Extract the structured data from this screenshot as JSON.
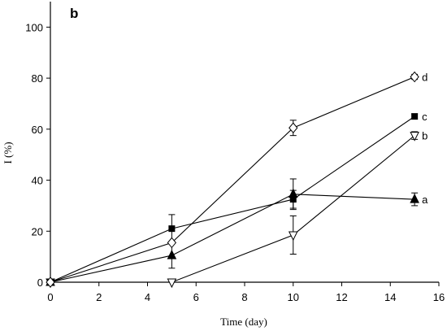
{
  "chart_data": {
    "type": "line",
    "panel_label": "b",
    "xlabel": "Time (day)",
    "ylabel": "I (%)",
    "xlim": [
      0,
      16
    ],
    "ylim": [
      0,
      110
    ],
    "xticks": [
      0,
      2,
      4,
      6,
      8,
      10,
      12,
      14,
      16
    ],
    "yticks": [
      0,
      20,
      40,
      60,
      80,
      100
    ],
    "grid": false,
    "series": [
      {
        "name": "a",
        "marker": "filled-triangle-up",
        "x": [
          0,
          5,
          10,
          15
        ],
        "y": [
          0,
          10.5,
          34.5,
          32.5
        ],
        "error": [
          0,
          5,
          6,
          2.5
        ]
      },
      {
        "name": "b",
        "marker": "open-triangle-down",
        "x": [
          0,
          5,
          10,
          15
        ],
        "y": [
          0,
          0,
          18.5,
          57.5
        ],
        "error": [
          0,
          0,
          7.5,
          1.5
        ]
      },
      {
        "name": "c",
        "marker": "filled-square",
        "x": [
          0,
          5,
          10,
          15
        ],
        "y": [
          0,
          21,
          32.5,
          65
        ],
        "error": [
          0,
          5.5,
          3.5,
          1
        ]
      },
      {
        "name": "d",
        "marker": "open-diamond",
        "x": [
          0,
          5,
          10,
          15
        ],
        "y": [
          0,
          15.5,
          60.5,
          80.5
        ],
        "error": [
          0,
          0,
          3,
          1
        ]
      }
    ]
  }
}
